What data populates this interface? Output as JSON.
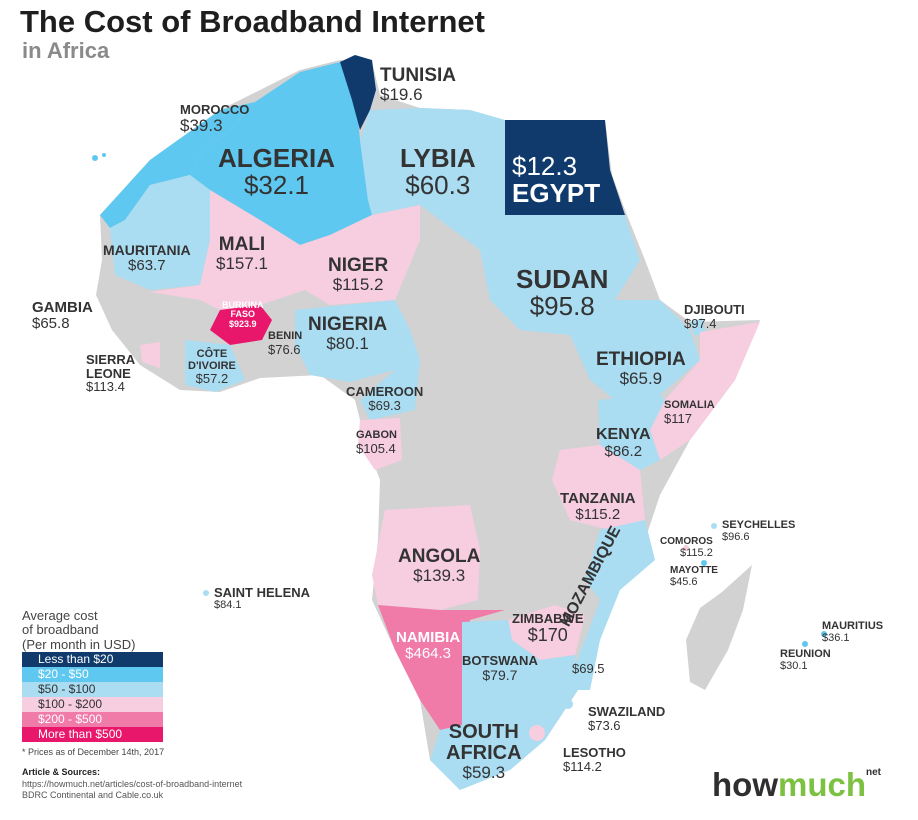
{
  "title": "The Cost of Broadband Internet",
  "subtitle": "in Africa",
  "colors": {
    "lt20": "#0f3a6b",
    "c20_50": "#5fc8f0",
    "c50_100": "#aadcf2",
    "c100_200": "#f7cde0",
    "c200_500": "#f07aa8",
    "gt500": "#e8176b",
    "nodata": "#d2d2d2",
    "ocean": "#ffffff"
  },
  "countries": {
    "tunisia": {
      "name": "TUNISIA",
      "value": "$19.6"
    },
    "morocco": {
      "name": "MOROCCO",
      "value": "$39.3"
    },
    "algeria": {
      "name": "ALGERIA",
      "value": "$32.1"
    },
    "lybia": {
      "name": "LYBIA",
      "value": "$60.3"
    },
    "egypt": {
      "name": "EGYPT",
      "value": "$12.3"
    },
    "mauritania": {
      "name": "MAURITANIA",
      "value": "$63.7"
    },
    "mali": {
      "name": "MALI",
      "value": "$157.1"
    },
    "niger": {
      "name": "NIGER",
      "value": "$115.2"
    },
    "sudan": {
      "name": "SUDAN",
      "value": "$95.8"
    },
    "djibouti": {
      "name": "DJIBOUTI",
      "value": "$97.4"
    },
    "gambia": {
      "name": "GAMBIA",
      "value": "$65.8"
    },
    "burkina": {
      "name_1": "BURKINA",
      "name_2": "FASO",
      "value": "$923.9"
    },
    "benin": {
      "name": "BENIN",
      "value": "$76.6"
    },
    "nigeria": {
      "name": "NIGERIA",
      "value": "$80.1"
    },
    "sierra": {
      "name_1": "SIERRA",
      "name_2": "LEONE",
      "value": "$113.4"
    },
    "cote": {
      "name_1": "CÔTE",
      "name_2": "D'IVOIRE",
      "value": "$57.2"
    },
    "ethiopia": {
      "name": "ETHIOPIA",
      "value": "$65.9"
    },
    "cameroon": {
      "name": "CAMEROON",
      "value": "$69.3"
    },
    "somalia": {
      "name": "SOMALIA",
      "value": "$117"
    },
    "gabon": {
      "name": "GABON",
      "value": "$105.4"
    },
    "kenya": {
      "name": "KENYA",
      "value": "$86.2"
    },
    "tanzania": {
      "name": "TANZANIA",
      "value": "$115.2"
    },
    "seychelles": {
      "name": "SEYCHELLES",
      "value": "$96.6"
    },
    "comoros": {
      "name": "COMOROS",
      "value": "$115.2"
    },
    "mayotte": {
      "name": "MAYOTTE",
      "value": "$45.6"
    },
    "angola": {
      "name": "ANGOLA",
      "value": "$139.3"
    },
    "saint_helena": {
      "name": "SAINT HELENA",
      "value": "$84.1"
    },
    "mozambique": {
      "name": "MOZAMBIQUE",
      "value": "$69.5"
    },
    "zimbabwe": {
      "name": "ZIMBABWE",
      "value": "$170"
    },
    "mauritius": {
      "name": "MAURITIUS",
      "value": "$36.1"
    },
    "reunion": {
      "name": "REUNION",
      "value": "$30.1"
    },
    "namibia": {
      "name": "NAMIBIA",
      "value": "$464.3"
    },
    "botswana": {
      "name": "BOTSWANA",
      "value": "$79.7"
    },
    "swaziland": {
      "name": "SWAZILAND",
      "value": "$73.6"
    },
    "south_africa": {
      "name_1": "SOUTH",
      "name_2": "AFRICA",
      "value": "$59.3"
    },
    "lesotho": {
      "name": "LESOTHO",
      "value": "$114.2"
    }
  },
  "legend": {
    "title_1": "Average cost",
    "title_2": "of broadband",
    "title_3": "(Per month in USD)",
    "items": [
      {
        "label": "Less than $20",
        "color": "#0f3a6b"
      },
      {
        "label": "$20 - $50",
        "color": "#5fc8f0"
      },
      {
        "label": "$50 - $100",
        "color": "#aadcf2"
      },
      {
        "label": "$100 - $200",
        "color": "#f7cde0"
      },
      {
        "label": "$200 - $500",
        "color": "#f07aa8"
      },
      {
        "label": "More than $500",
        "color": "#e8176b"
      }
    ]
  },
  "footnote": "* Prices as of December 14th, 2017",
  "sources_heading": "Article & Sources:",
  "sources": [
    "https://howmuch.net/articles/cost-of-broadband-internet",
    "BDRC Continental and Cable.co.uk"
  ],
  "brand": {
    "part1": "how",
    "part2": "much",
    "sup": "net"
  }
}
